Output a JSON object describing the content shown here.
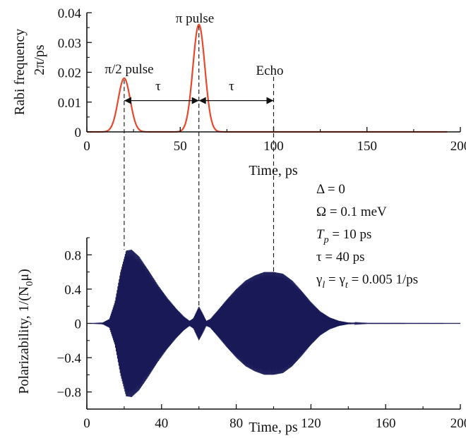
{
  "colors": {
    "pulse": "#e8482c",
    "polarization": "#191957",
    "axis": "#111111"
  },
  "chart_data": [
    {
      "type": "line",
      "xlabel": "Time, ps",
      "ylabel_line1": "Rabi frequency",
      "ylabel_line2": "2π/ps",
      "xlim": [
        0,
        200
      ],
      "ylim": [
        0,
        0.04
      ],
      "xticks": [
        0,
        50,
        100,
        150,
        200
      ],
      "xtick_labels": [
        "0",
        "50",
        "100",
        "150",
        "200"
      ],
      "yticks": [
        0,
        0.01,
        0.02,
        0.03,
        0.04
      ],
      "ytick_labels": [
        "0",
        "0.01",
        "0.02",
        "0.03",
        "0.04"
      ],
      "series": [
        {
          "pulses": [
            {
              "center": 20,
              "peak": 0.018,
              "sigma": 3.2
            },
            {
              "center": 60,
              "peak": 0.036,
              "sigma": 3.2
            }
          ],
          "x_end": 193
        }
      ],
      "annotations": {
        "pulse1": "π/2 pulse",
        "pulse2": "π pulse",
        "echo": "Echo",
        "tau": "τ"
      },
      "markers": [
        20,
        60,
        100
      ]
    },
    {
      "type": "line",
      "xlabel": "Time, ps",
      "ylabel": "Polarizability, 1/(N",
      "ylabel_sub": "0",
      "ylabel_tail": "μ)",
      "xlim": [
        0,
        200
      ],
      "ylim": [
        -1,
        1
      ],
      "xticks": [
        0,
        40,
        80,
        120,
        160,
        200
      ],
      "xtick_labels": [
        "0",
        "40",
        "80",
        "120",
        "160",
        "200"
      ],
      "yticks": [
        -0.8,
        -0.4,
        0,
        0.4,
        0.8
      ],
      "ytick_labels": [
        "−0.8",
        "−0.4",
        "0",
        "0.4",
        "0.8"
      ],
      "envelope": [
        [
          0,
          0
        ],
        [
          8,
          0.005
        ],
        [
          12,
          0.05
        ],
        [
          15,
          0.25
        ],
        [
          18,
          0.6
        ],
        [
          21,
          0.85
        ],
        [
          24,
          0.86
        ],
        [
          28,
          0.78
        ],
        [
          33,
          0.62
        ],
        [
          38,
          0.45
        ],
        [
          43,
          0.3
        ],
        [
          48,
          0.17
        ],
        [
          52,
          0.08
        ],
        [
          55,
          0.03
        ],
        [
          57,
          0.06
        ],
        [
          60,
          0.2
        ],
        [
          62,
          0.12
        ],
        [
          64,
          0.03
        ],
        [
          66,
          0.05
        ],
        [
          70,
          0.15
        ],
        [
          75,
          0.28
        ],
        [
          80,
          0.4
        ],
        [
          85,
          0.5
        ],
        [
          90,
          0.56
        ],
        [
          95,
          0.6
        ],
        [
          100,
          0.6
        ],
        [
          105,
          0.58
        ],
        [
          110,
          0.5
        ],
        [
          115,
          0.38
        ],
        [
          120,
          0.25
        ],
        [
          125,
          0.14
        ],
        [
          130,
          0.07
        ],
        [
          135,
          0.03
        ],
        [
          140,
          0.01
        ],
        [
          150,
          0.003
        ],
        [
          200,
          0.002
        ]
      ],
      "params": [
        "Δ = 0",
        "Ω = 0.1 meV",
        "T_p = 10 ps",
        "τ = 40 ps",
        "γ_l = γ_t = 0.005 1/ps"
      ]
    }
  ]
}
